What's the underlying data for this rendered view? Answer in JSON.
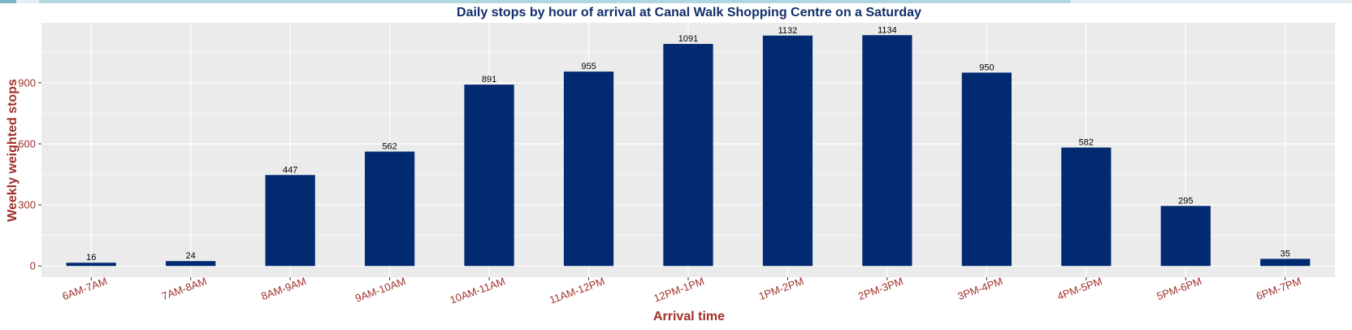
{
  "progress": {
    "fraction": 0.786
  },
  "chart_data": {
    "type": "bar",
    "title": "Daily stops by hour of arrival at Canal Walk Shopping Centre on a Saturday",
    "xlabel": "Arrival time",
    "ylabel": "Weekly weighted stops",
    "categories": [
      "6AM-7AM",
      "7AM-8AM",
      "8AM-9AM",
      "9AM-10AM",
      "10AM-11AM",
      "11AM-12PM",
      "12PM-1PM",
      "1PM-2PM",
      "2PM-3PM",
      "3PM-4PM",
      "4PM-5PM",
      "5PM-6PM",
      "6PM-7PM"
    ],
    "values": [
      16,
      24,
      447,
      562,
      891,
      955,
      1091,
      1132,
      1134,
      950,
      582,
      295,
      35
    ],
    "yticks": [
      0,
      300,
      600,
      900
    ],
    "ylim": [
      -55,
      1195
    ],
    "grid": true,
    "colors": {
      "bar": "#012a71",
      "panel": "#ebebeb",
      "grid": "#ffffff",
      "accent": "#a0302a",
      "title": "#12306a"
    }
  }
}
